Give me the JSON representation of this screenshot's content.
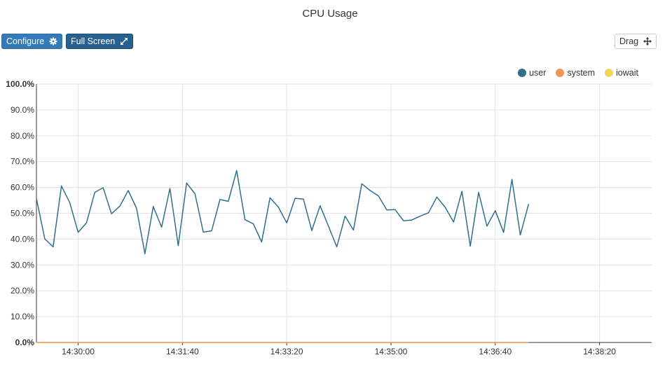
{
  "header": {
    "title": "CPU Usage"
  },
  "toolbar": {
    "configure_label": "Configure",
    "fullscreen_label": "Full Screen",
    "drag_label": "Drag"
  },
  "icons": {
    "configure": "gear-icon",
    "fullscreen": "expand-arrows-icon",
    "drag": "move-arrows-icon"
  },
  "chart_data": {
    "type": "line",
    "title": "CPU Usage",
    "xlabel": "",
    "ylabel": "",
    "legend_position": "top-right",
    "grid": true,
    "ylim": [
      0,
      100
    ],
    "y_ticks": [
      "0.0%",
      "10.0%",
      "20.0%",
      "30.0%",
      "40.0%",
      "50.0%",
      "60.0%",
      "70.0%",
      "80.0%",
      "90.0%",
      "100.0%"
    ],
    "x_ticks": [
      "14:30:00",
      "14:31:40",
      "14:33:20",
      "14:35:00",
      "14:36:40",
      "14:38:20"
    ],
    "x_tick_seconds": [
      0,
      100,
      200,
      300,
      400,
      500
    ],
    "xlim_seconds": [
      -40,
      550
    ],
    "x_interval_seconds": 8,
    "series": [
      {
        "name": "user",
        "color": "#2e6f8e",
        "values": [
          55.7,
          40.1,
          37.0,
          60.6,
          54.1,
          42.6,
          46.3,
          58.1,
          59.9,
          49.8,
          52.8,
          58.8,
          51.9,
          34.3,
          52.6,
          44.6,
          59.6,
          37.5,
          61.7,
          57.6,
          42.7,
          43.2,
          55.3,
          54.6,
          66.5,
          47.5,
          45.9,
          38.9,
          56.0,
          52.4,
          46.3,
          55.8,
          55.5,
          43.3,
          52.9,
          45.0,
          37.0,
          48.9,
          43.5,
          61.4,
          58.8,
          56.7,
          51.3,
          51.4,
          47.1,
          47.4,
          48.9,
          50.2,
          56.3,
          52.3,
          46.6,
          58.5,
          37.3,
          58.1,
          45.0,
          51.0,
          42.6,
          63.1,
          41.6,
          53.6
        ]
      },
      {
        "name": "system",
        "color": "#f0955a",
        "values": [
          0,
          0,
          0,
          0,
          0,
          0,
          0,
          0,
          0,
          0,
          0,
          0,
          0,
          0,
          0,
          0,
          0,
          0,
          0,
          0,
          0,
          0,
          0,
          0,
          0,
          0,
          0,
          0,
          0,
          0,
          0,
          0,
          0,
          0,
          0,
          0,
          0,
          0,
          0,
          0,
          0,
          0,
          0,
          0,
          0,
          0,
          0,
          0,
          0,
          0,
          0,
          0,
          0,
          0,
          0,
          0,
          0,
          0,
          0,
          0
        ]
      },
      {
        "name": "iowait",
        "color": "#f0d55a",
        "values": [
          0,
          0,
          0,
          0,
          0,
          0,
          0,
          0,
          0,
          0,
          0,
          0,
          0,
          0,
          0,
          0,
          0,
          0,
          0,
          0,
          0,
          0,
          0,
          0,
          0,
          0,
          0,
          0,
          0,
          0,
          0,
          0,
          0,
          0,
          0,
          0,
          0,
          0,
          0,
          0,
          0,
          0,
          0,
          0,
          0,
          0,
          0,
          0,
          0,
          0,
          0,
          0,
          0,
          0,
          0,
          0,
          0,
          0,
          0,
          0
        ]
      }
    ]
  }
}
